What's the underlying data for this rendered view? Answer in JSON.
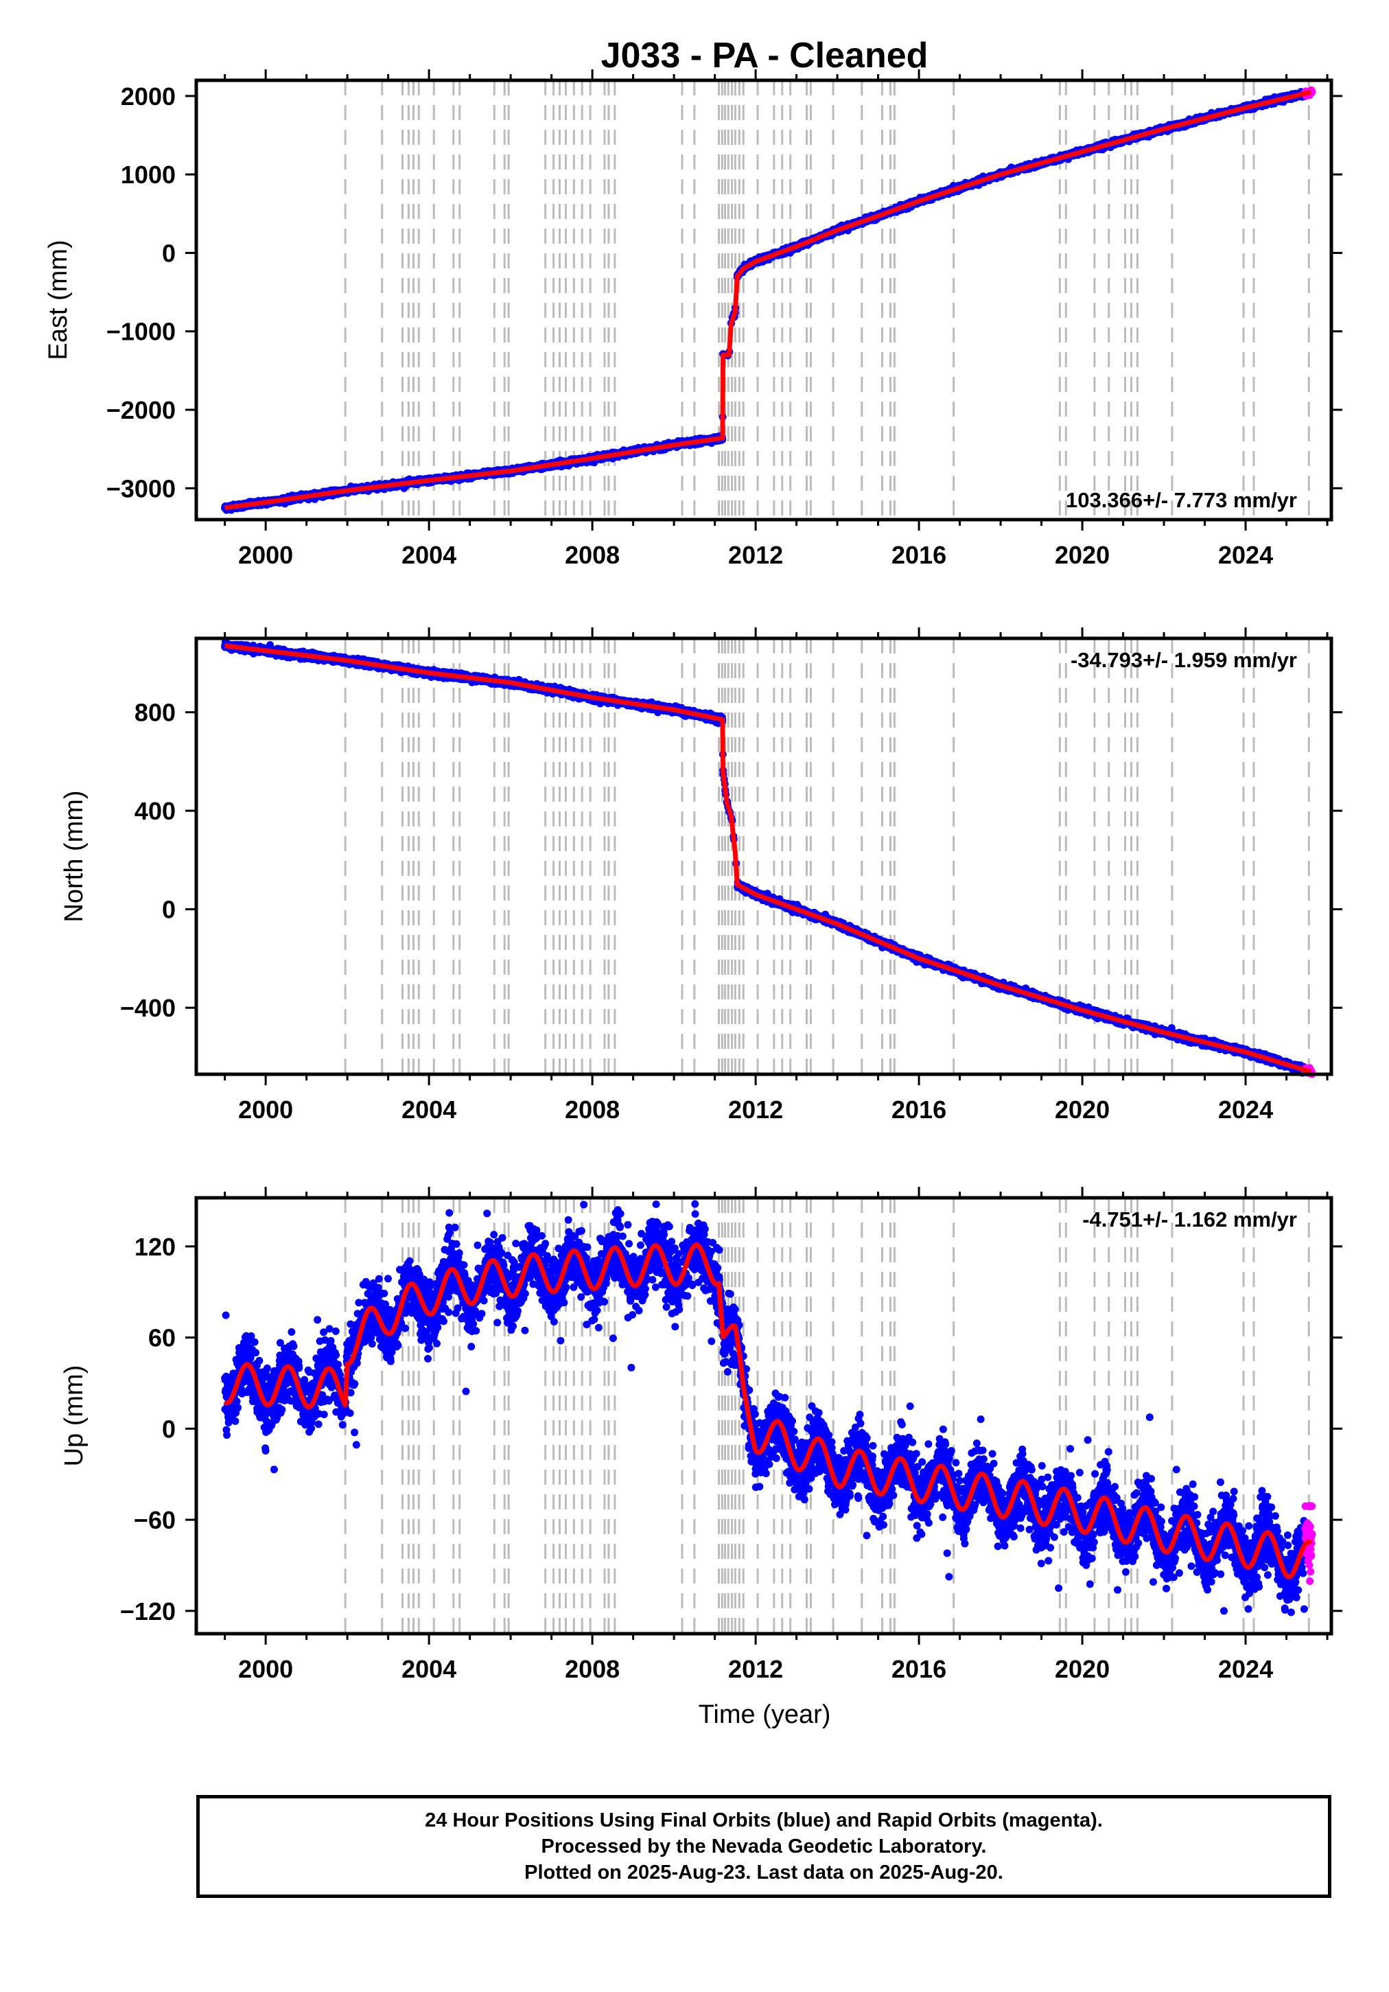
{
  "chart_data": {
    "title": "J033  - PA - Cleaned",
    "type": "scatter",
    "xlabel": "Time (year)",
    "xlim": [
      1998.3,
      2026.1
    ],
    "xticks": [
      2000,
      2004,
      2008,
      2012,
      2016,
      2020,
      2024
    ],
    "colors": {
      "final_orbits": "#0000ff",
      "rapid_orbits": "#ff00ff",
      "model": "#ff0000",
      "steps": "#bbbbbb"
    },
    "step_epochs": [
      2001.95,
      2002.85,
      2003.35,
      2003.5,
      2003.62,
      2003.75,
      2004.12,
      2004.6,
      2004.75,
      2005.6,
      2005.85,
      2005.95,
      2006.85,
      2007.05,
      2007.2,
      2007.35,
      2007.55,
      2007.75,
      2007.95,
      2008.3,
      2008.4,
      2008.55,
      2010.2,
      2010.5,
      2011.1,
      2011.18,
      2011.25,
      2011.33,
      2011.42,
      2011.5,
      2011.6,
      2011.7,
      2012.05,
      2012.45,
      2012.65,
      2012.85,
      2013.25,
      2013.35,
      2013.9,
      2014.6,
      2015.1,
      2015.3,
      2015.4,
      2016.85,
      2019.45,
      2019.6,
      2020.3,
      2020.65,
      2021.05,
      2021.2,
      2021.35,
      2022.2,
      2023.95,
      2024.2,
      2025.55
    ],
    "panels": [
      {
        "id": "east",
        "ylabel": "East (mm)",
        "ylim": [
          -3400,
          2200
        ],
        "yticks": [
          -3000,
          -2000,
          -1000,
          0,
          1000,
          2000
        ],
        "yticklabels": [
          "−3000",
          "−2000",
          "−1000",
          "0",
          "1000",
          "2000"
        ],
        "rate_text": "103.366+/- 7.773 mm/yr",
        "rate_position": "bottom-right",
        "noise": 15,
        "series": [
          {
            "name": "Final Orbits",
            "color": "#0000ff"
          },
          {
            "name": "Rapid Orbits",
            "color": "#ff00ff"
          }
        ],
        "trend_points": [
          [
            1999.0,
            -3250
          ],
          [
            2000.0,
            -3180
          ],
          [
            2002.0,
            -3030
          ],
          [
            2004.0,
            -2900
          ],
          [
            2006.0,
            -2780
          ],
          [
            2008.0,
            -2620
          ],
          [
            2010.0,
            -2450
          ],
          [
            2011.19,
            -2360
          ],
          [
            2011.2,
            -1300
          ],
          [
            2011.35,
            -1300
          ],
          [
            2011.4,
            -900
          ],
          [
            2011.5,
            -750
          ],
          [
            2011.55,
            -300
          ],
          [
            2011.7,
            -200
          ],
          [
            2012.0,
            -110
          ],
          [
            2013.0,
            80
          ],
          [
            2014.0,
            290
          ],
          [
            2015.0,
            470
          ],
          [
            2016.0,
            660
          ],
          [
            2018.0,
            1000
          ],
          [
            2020.0,
            1290
          ],
          [
            2022.0,
            1580
          ],
          [
            2024.0,
            1850
          ],
          [
            2025.6,
            2050
          ]
        ]
      },
      {
        "id": "north",
        "ylabel": "North (mm)",
        "ylim": [
          -670,
          1100
        ],
        "yticks": [
          -400,
          0,
          400,
          800
        ],
        "yticklabels": [
          "−400",
          "0",
          "400",
          "800"
        ],
        "rate_text": "-34.793+/- 1.959 mm/yr",
        "rate_position": "top-right",
        "noise": 6,
        "series": [
          {
            "name": "Final Orbits",
            "color": "#0000ff"
          },
          {
            "name": "Rapid Orbits",
            "color": "#ff00ff"
          }
        ],
        "trend_points": [
          [
            1999.0,
            1070
          ],
          [
            2000.0,
            1050
          ],
          [
            2002.0,
            1010
          ],
          [
            2004.0,
            960
          ],
          [
            2006.0,
            920
          ],
          [
            2008.0,
            860
          ],
          [
            2010.0,
            810
          ],
          [
            2011.19,
            770
          ],
          [
            2011.2,
            560
          ],
          [
            2011.3,
            430
          ],
          [
            2011.4,
            380
          ],
          [
            2011.5,
            230
          ],
          [
            2011.55,
            100
          ],
          [
            2012.0,
            60
          ],
          [
            2014.0,
            -60
          ],
          [
            2016.0,
            -200
          ],
          [
            2018.0,
            -310
          ],
          [
            2020.0,
            -410
          ],
          [
            2022.0,
            -500
          ],
          [
            2024.0,
            -580
          ],
          [
            2025.6,
            -660
          ]
        ]
      },
      {
        "id": "up",
        "ylabel": "Up (mm)",
        "ylim": [
          -135,
          152
        ],
        "yticks": [
          -120,
          -60,
          0,
          60,
          120
        ],
        "yticklabels": [
          "−120",
          "−60",
          "0",
          "60",
          "120"
        ],
        "rate_text": "-4.751+/- 1.162 mm/yr",
        "rate_position": "top-right",
        "noise": 10,
        "seasonal_amplitude": 13,
        "series": [
          {
            "name": "Final Orbits",
            "color": "#0000ff"
          },
          {
            "name": "Rapid Orbits",
            "color": "#ff00ff"
          }
        ],
        "trend_points": [
          [
            1999.0,
            30
          ],
          [
            2001.95,
            26
          ],
          [
            2002.0,
            55
          ],
          [
            2003.0,
            75
          ],
          [
            2004.0,
            88
          ],
          [
            2005.0,
            95
          ],
          [
            2006.0,
            100
          ],
          [
            2007.0,
            103
          ],
          [
            2008.0,
            105
          ],
          [
            2009.0,
            107
          ],
          [
            2010.0,
            108
          ],
          [
            2011.1,
            108
          ],
          [
            2011.2,
            68
          ],
          [
            2011.5,
            55
          ],
          [
            2011.7,
            20
          ],
          [
            2012.0,
            -2
          ],
          [
            2014.0,
            -25
          ],
          [
            2016.0,
            -35
          ],
          [
            2018.0,
            -45
          ],
          [
            2020.0,
            -55
          ],
          [
            2022.0,
            -68
          ],
          [
            2024.0,
            -78
          ],
          [
            2025.6,
            -88
          ]
        ]
      }
    ]
  },
  "footer": {
    "line1": "24 Hour Positions Using Final Orbits (blue) and Rapid Orbits (magenta).",
    "line2": "Processed by the Nevada Geodetic Laboratory.",
    "line3": "Plotted on 2025-Aug-23. Last data on 2025-Aug-20."
  }
}
